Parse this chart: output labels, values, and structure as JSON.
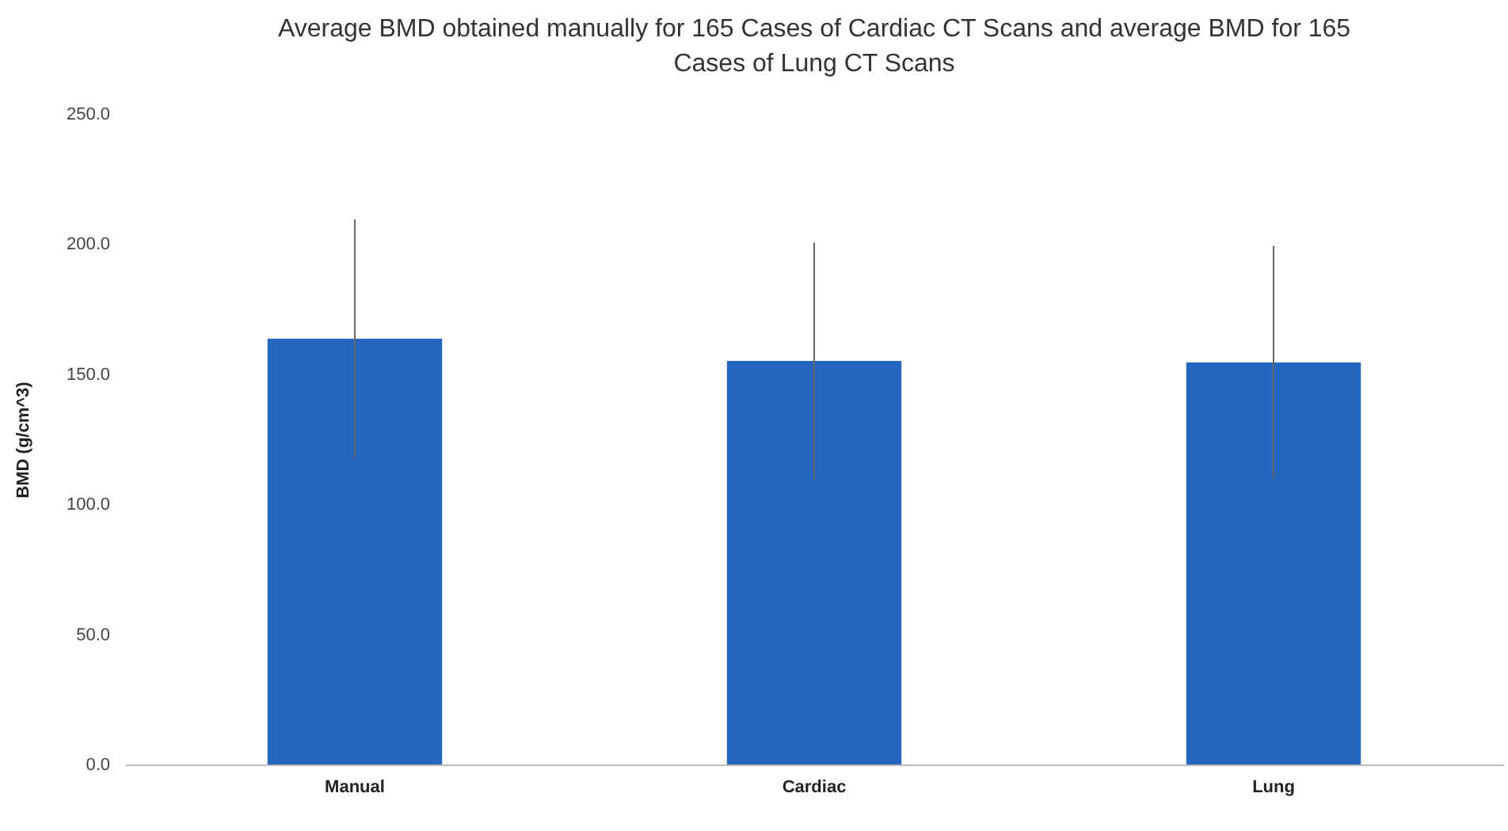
{
  "chart_data": {
    "type": "bar",
    "title": "Average BMD obtained manually for 165 Cases of Cardiac CT Scans and average BMD for 165 Cases of Lung CT Scans",
    "ylabel": "BMD  (g/cm^3)",
    "categories": [
      "Manual",
      "Cardiac",
      "Lung"
    ],
    "values": [
      163.6,
      155.1,
      154.5
    ],
    "errors": [
      45.8,
      45.5,
      44.8
    ],
    "color": "#2266c0",
    "ylim": [
      0,
      250
    ],
    "yticks": [
      {
        "value": 0,
        "label": "0.0"
      },
      {
        "value": 50,
        "label": "50.0"
      },
      {
        "value": 100,
        "label": "100.0"
      },
      {
        "value": 150,
        "label": "150.0"
      },
      {
        "value": 200,
        "label": "200.0"
      },
      {
        "value": 250,
        "label": "250.0"
      }
    ],
    "grid": false
  }
}
